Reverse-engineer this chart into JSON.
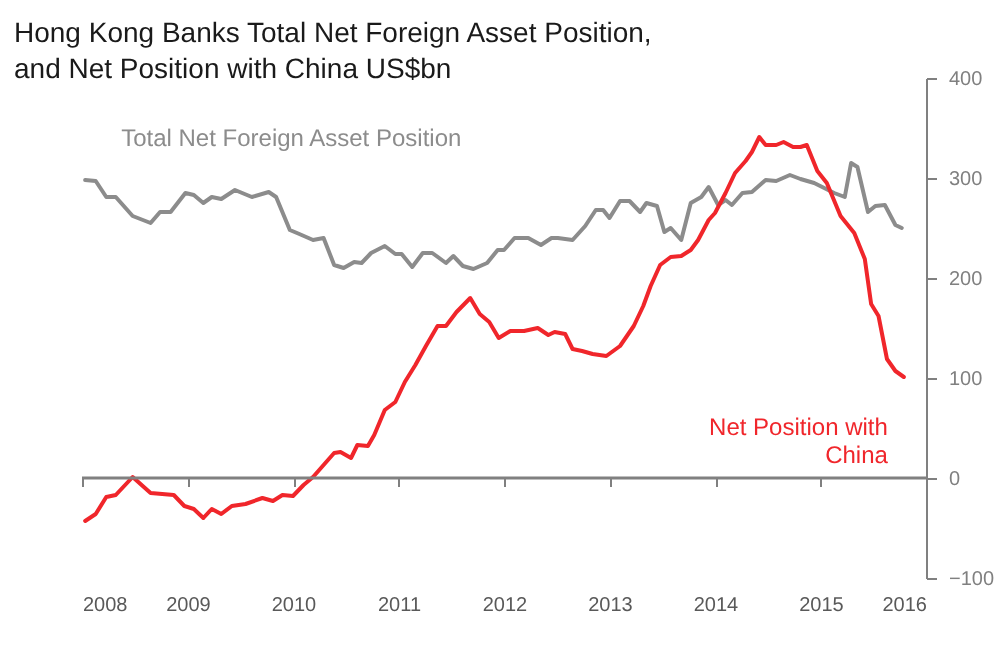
{
  "chart_data": {
    "type": "line",
    "title": "Hong Kong Banks Total Net Foreign Asset Position, and Net Position with China US$bn",
    "xlim": [
      2008,
      2016
    ],
    "xticks": [
      2008,
      2009,
      2010,
      2011,
      2012,
      2013,
      2014,
      2015,
      2016
    ],
    "ylim": [
      -100,
      400
    ],
    "yticks": [
      -100,
      0,
      100,
      200,
      300,
      400
    ],
    "grid": false,
    "legend": false,
    "ref_lines": [
      {
        "axis": "y",
        "value": 0,
        "color": "#808080"
      }
    ],
    "series": [
      {
        "name": "Total Net Foreign Asset Position",
        "color": "#8c8c8c",
        "x": [
          2008.03,
          2008.13,
          2008.23,
          2008.32,
          2008.48,
          2008.65,
          2008.74,
          2008.84,
          2008.98,
          2009.06,
          2009.15,
          2009.23,
          2009.32,
          2009.45,
          2009.61,
          2009.77,
          2009.84,
          2009.97,
          2010.06,
          2010.19,
          2010.29,
          2010.39,
          2010.48,
          2010.58,
          2010.65,
          2010.74,
          2010.87,
          2010.97,
          2011.03,
          2011.13,
          2011.23,
          2011.32,
          2011.45,
          2011.52,
          2011.61,
          2011.71,
          2011.84,
          2011.94,
          2012.0,
          2012.1,
          2012.23,
          2012.35,
          2012.45,
          2012.51,
          2012.65,
          2012.77,
          2012.87,
          2012.94,
          2013.0,
          2013.1,
          2013.19,
          2013.29,
          2013.35,
          2013.45,
          2013.52,
          2013.58,
          2013.68,
          2013.77,
          2013.87,
          2013.94,
          2014.03,
          2014.1,
          2014.16,
          2014.26,
          2014.35,
          2014.48,
          2014.58,
          2014.71,
          2014.81,
          2014.94,
          2015.13,
          2015.23,
          2015.29,
          2015.35,
          2015.45,
          2015.52,
          2015.61,
          2015.71,
          2015.77
        ],
        "values": [
          298,
          297,
          281,
          281,
          262,
          255,
          266,
          266,
          285,
          283,
          275,
          281,
          279,
          288,
          281,
          286,
          281,
          248,
          244,
          238,
          240,
          213,
          210,
          216,
          215,
          225,
          232,
          224,
          224,
          211,
          225,
          225,
          215,
          222,
          212,
          209,
          215,
          228,
          228,
          240,
          240,
          233,
          240,
          240,
          238,
          252,
          268,
          268,
          260,
          277,
          277,
          266,
          275,
          272,
          246,
          250,
          238,
          275,
          281,
          291,
          273,
          278,
          273,
          285,
          286,
          298,
          297,
          303,
          299,
          295,
          285,
          281,
          315,
          311,
          266,
          272,
          273,
          253,
          250
        ]
      },
      {
        "name": "Net Position with China",
        "color": "#f0262b",
        "x": [
          2008.03,
          2008.13,
          2008.23,
          2008.32,
          2008.48,
          2008.65,
          2008.87,
          2008.97,
          2009.06,
          2009.15,
          2009.23,
          2009.32,
          2009.42,
          2009.55,
          2009.71,
          2009.81,
          2009.9,
          2010.0,
          2010.1,
          2010.19,
          2010.29,
          2010.39,
          2010.45,
          2010.55,
          2010.61,
          2010.71,
          2010.77,
          2010.87,
          2010.97,
          2011.06,
          2011.16,
          2011.26,
          2011.37,
          2011.45,
          2011.55,
          2011.68,
          2011.77,
          2011.86,
          2011.95,
          2012.06,
          2012.19,
          2012.32,
          2012.42,
          2012.48,
          2012.58,
          2012.65,
          2012.74,
          2012.84,
          2012.97,
          2013.1,
          2013.23,
          2013.32,
          2013.39,
          2013.48,
          2013.58,
          2013.68,
          2013.77,
          2013.84,
          2013.94,
          2014.0,
          2014.1,
          2014.19,
          2014.29,
          2014.35,
          2014.42,
          2014.48,
          2014.58,
          2014.65,
          2014.74,
          2014.81,
          2014.87,
          2014.97,
          2015.06,
          2015.19,
          2015.32,
          2015.42,
          2015.48,
          2015.55,
          2015.63,
          2015.71,
          2015.79
        ],
        "values": [
          -43,
          -36,
          -19,
          -17,
          1,
          -15,
          -17,
          -28,
          -31,
          -40,
          -31,
          -36,
          -28,
          -26,
          -20,
          -23,
          -17,
          -18,
          -7,
          1,
          13,
          25,
          26,
          20,
          33,
          32,
          43,
          68,
          76,
          96,
          113,
          132,
          152,
          152,
          166,
          180,
          164,
          156,
          140,
          147,
          147,
          150,
          143,
          146,
          144,
          129,
          127,
          124,
          122,
          132,
          152,
          172,
          192,
          213,
          221,
          222,
          228,
          238,
          258,
          265,
          285,
          305,
          317,
          326,
          341,
          333,
          333,
          336,
          331,
          331,
          333,
          307,
          295,
          262,
          245,
          219,
          174,
          162,
          119,
          107,
          101
        ]
      }
    ]
  }
}
